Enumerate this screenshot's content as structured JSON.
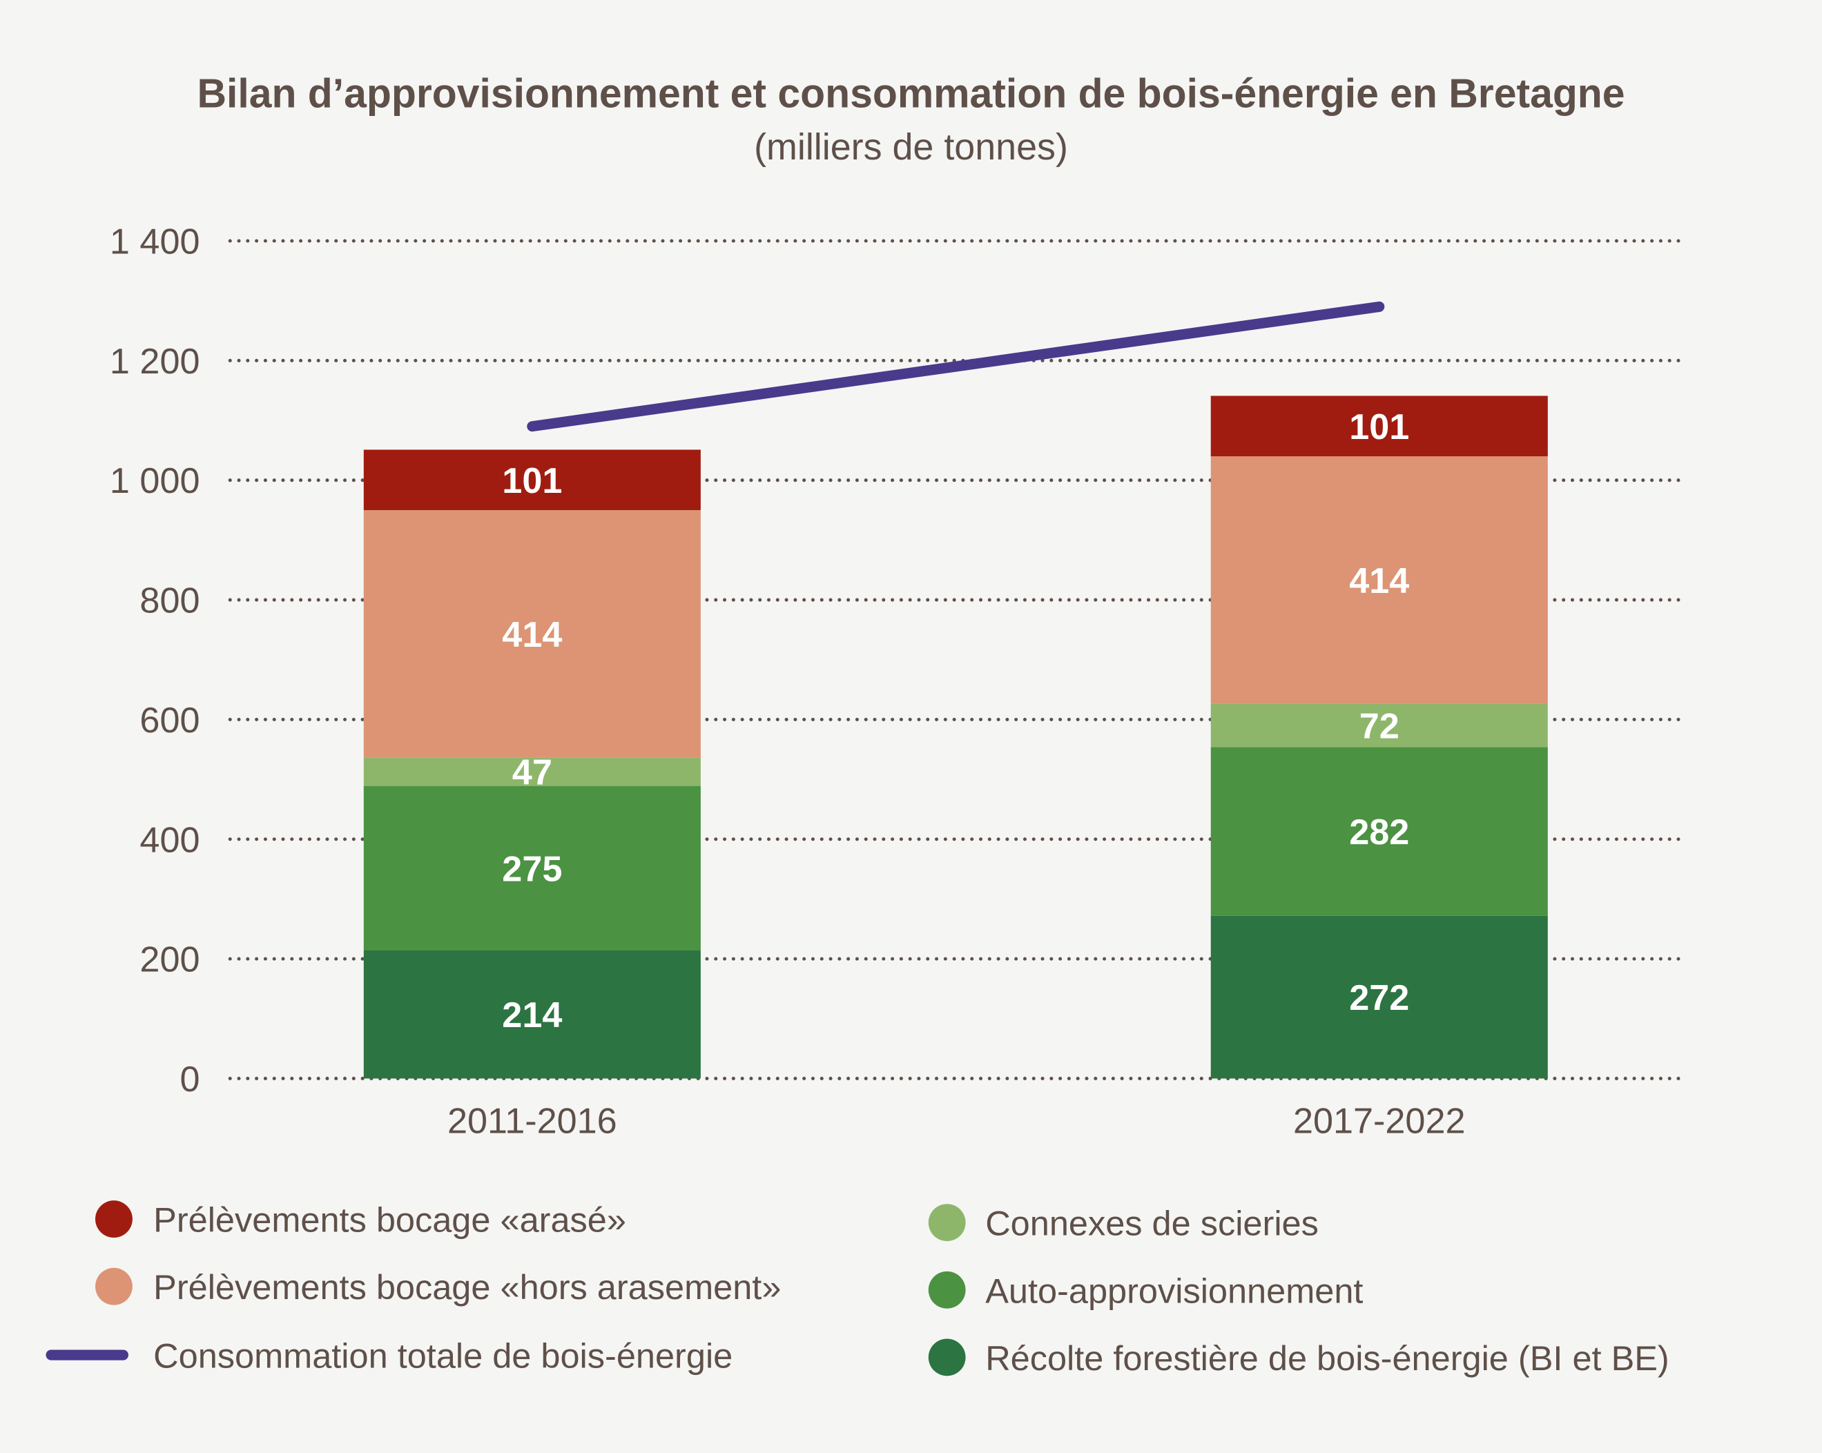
{
  "chart_data": {
    "type": "bar",
    "stacked": true,
    "title": "Bilan d’approvisionnement et consommation de bois-énergie en Bretagne",
    "subtitle": "(milliers de tonnes)",
    "categories": [
      "2011-2016",
      "2017-2022"
    ],
    "ylim": [
      0,
      1400
    ],
    "yticks": [
      0,
      200,
      400,
      600,
      800,
      1000,
      1200,
      1400
    ],
    "ytick_labels": [
      "0",
      "200",
      "400",
      "600",
      "800",
      "1 000",
      "1 200",
      "1 400"
    ],
    "grid": "dotted horizontal",
    "legend_position": "bottom",
    "series": [
      {
        "name": "Récolte forestière de bois-énergie (BI et BE)",
        "values": [
          214,
          272
        ],
        "color": "#2c7441"
      },
      {
        "name": "Auto-approvisionnement",
        "values": [
          275,
          282
        ],
        "color": "#4b9242"
      },
      {
        "name": "Connexes de scieries",
        "values": [
          47,
          72
        ],
        "color": "#8db66b"
      },
      {
        "name": "Prélèvements bocage «hors arasement»",
        "values": [
          414,
          414
        ],
        "color": "#dc9475"
      },
      {
        "name": "Prélèvements bocage «arasé»",
        "values": [
          101,
          101
        ],
        "color": "#a11c10"
      }
    ],
    "line_series": {
      "name": "Consommation totale de bois-énergie",
      "values": [
        1090,
        1290
      ],
      "color": "#4a3a8c"
    }
  },
  "legend_order_left": [
    4,
    3
  ],
  "legend_order_right": [
    2,
    1,
    0
  ]
}
